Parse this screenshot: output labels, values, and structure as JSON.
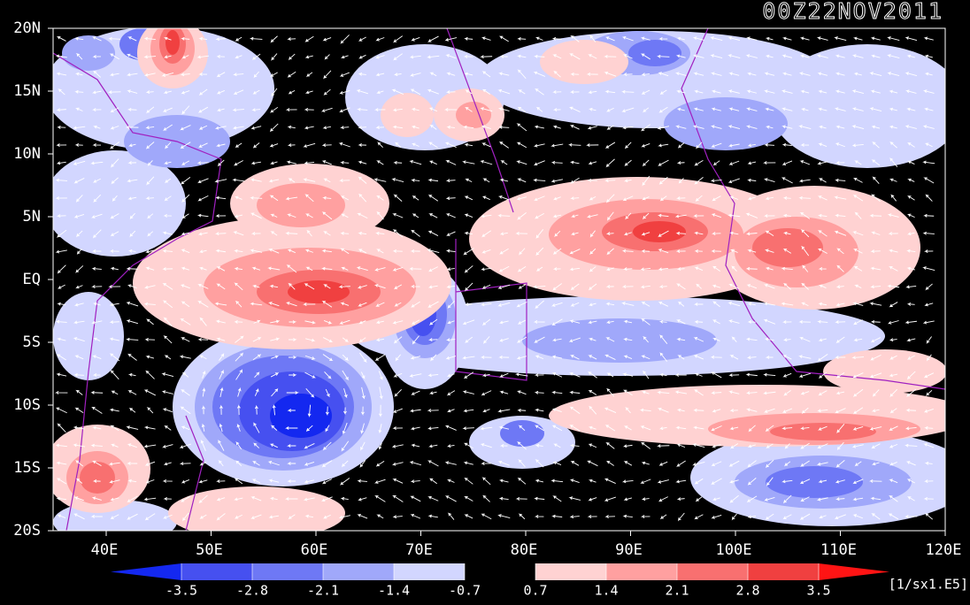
{
  "title": "00Z22NOV2011",
  "map": {
    "lat_labels": [
      "20N",
      "15N",
      "10N",
      "5N",
      "EQ",
      "5S",
      "10S",
      "15S",
      "20S"
    ],
    "lon_labels": [
      "40E",
      "50E",
      "60E",
      "70E",
      "80E",
      "90E",
      "100E",
      "110E",
      "120E"
    ]
  },
  "colorbar": {
    "levels": [
      -3.5,
      -2.8,
      -2.1,
      -1.4,
      -0.7,
      0.7,
      1.4,
      2.1,
      2.8,
      3.5
    ],
    "colors": [
      "#1428f0",
      "#4650f0",
      "#6e78f5",
      "#a0a8fa",
      "#d2d6ff",
      "#000000",
      "#ffd2d2",
      "#ffa0a0",
      "#f87070",
      "#f04040",
      "#ff1414"
    ],
    "units": "[1/sx1.E5]"
  }
}
